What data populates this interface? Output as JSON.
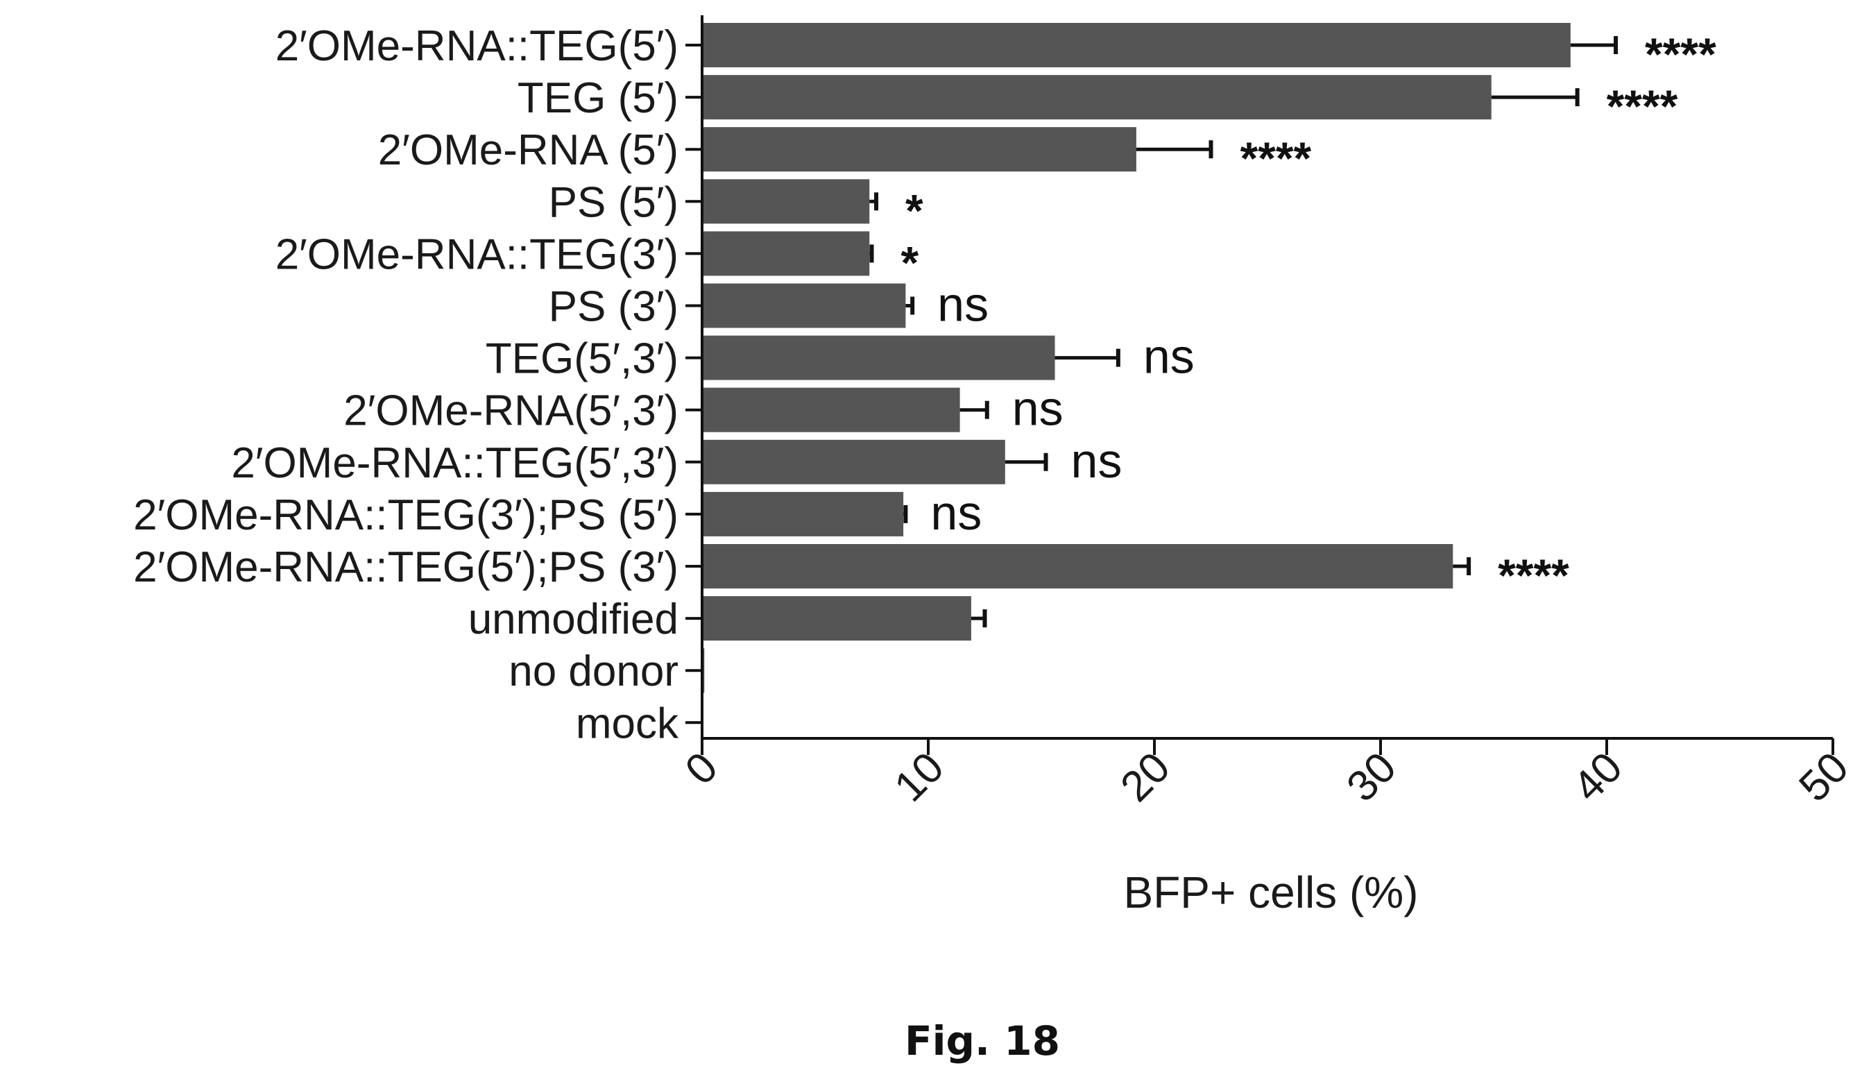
{
  "chart_data": {
    "type": "bar",
    "orientation": "horizontal",
    "categories": [
      "2′OMe-RNA::TEG(5′)",
      "TEG (5′)",
      "2′OMe-RNA (5′)",
      "PS (5′)",
      "2′OMe-RNA::TEG(3′)",
      "PS (3′)",
      "TEG(5′,3′)",
      "2′OMe-RNA(5′,3′)",
      "2′OMe-RNA::TEG(5′,3′)",
      "2′OMe-RNA::TEG(3′);PS (5′)",
      "2′OMe-RNA::TEG(5′);PS (3′)",
      "unmodified",
      "no donor",
      "mock"
    ],
    "values": [
      38.4,
      34.9,
      19.2,
      7.4,
      7.4,
      9.0,
      15.6,
      11.4,
      13.4,
      8.9,
      33.2,
      11.9,
      0.1,
      0.0
    ],
    "errors": [
      2.0,
      3.8,
      3.3,
      0.3,
      0.1,
      0.3,
      2.8,
      1.2,
      1.8,
      0.1,
      0.7,
      0.6,
      0,
      0
    ],
    "significance": [
      "****",
      "****",
      "****",
      "*",
      "*",
      "ns",
      "ns",
      "ns",
      "ns",
      "ns",
      "****",
      "",
      "",
      ""
    ],
    "xlabel": "BFP+ cells (%)",
    "xlim": [
      0,
      50
    ],
    "xticks": [
      0,
      10,
      20,
      30,
      40,
      50
    ],
    "bar_color": "#555555",
    "grid": false
  },
  "figure": {
    "caption": "Fig. 18"
  }
}
